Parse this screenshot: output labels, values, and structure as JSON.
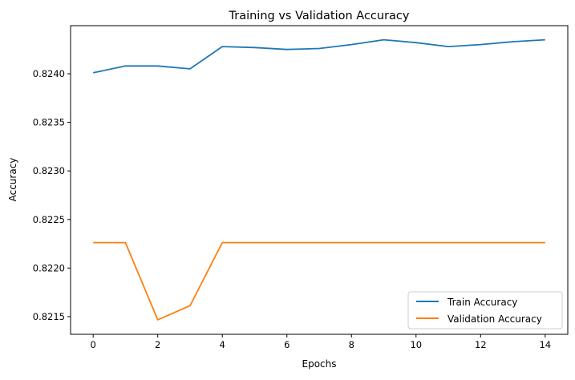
{
  "chart_data": {
    "type": "line",
    "title": "Training vs Validation Accuracy",
    "xlabel": "Epochs",
    "ylabel": "Accuracy",
    "x": [
      0,
      1,
      2,
      3,
      4,
      5,
      6,
      7,
      8,
      9,
      10,
      11,
      12,
      13,
      14
    ],
    "series": [
      {
        "name": "Train Accuracy",
        "color": "#1f77b4",
        "values": [
          0.82401,
          0.82408,
          0.82408,
          0.82405,
          0.82428,
          0.82427,
          0.82425,
          0.82426,
          0.8243,
          0.82435,
          0.82432,
          0.82428,
          0.8243,
          0.82433,
          0.82435
        ]
      },
      {
        "name": "Validation Accuracy",
        "color": "#ff7f0e",
        "values": [
          0.822262,
          0.822262,
          0.821467,
          0.821613,
          0.822262,
          0.822262,
          0.822262,
          0.822262,
          0.822262,
          0.822262,
          0.822262,
          0.822262,
          0.822262,
          0.822262,
          0.822262
        ]
      }
    ],
    "xlim": [
      -0.7,
      14.7
    ],
    "ylim": [
      0.821318,
      0.824495
    ],
    "xticks": [
      0,
      2,
      4,
      6,
      8,
      10,
      12,
      14
    ],
    "xtick_labels": [
      "0",
      "2",
      "4",
      "6",
      "8",
      "10",
      "12",
      "14"
    ],
    "yticks": [
      0.8215,
      0.822,
      0.8225,
      0.823,
      0.8235,
      0.824
    ],
    "ytick_labels": [
      "0.8215",
      "0.8220",
      "0.8225",
      "0.8230",
      "0.8235",
      "0.8240"
    ],
    "grid": false,
    "legend_position": "bottom-right"
  }
}
